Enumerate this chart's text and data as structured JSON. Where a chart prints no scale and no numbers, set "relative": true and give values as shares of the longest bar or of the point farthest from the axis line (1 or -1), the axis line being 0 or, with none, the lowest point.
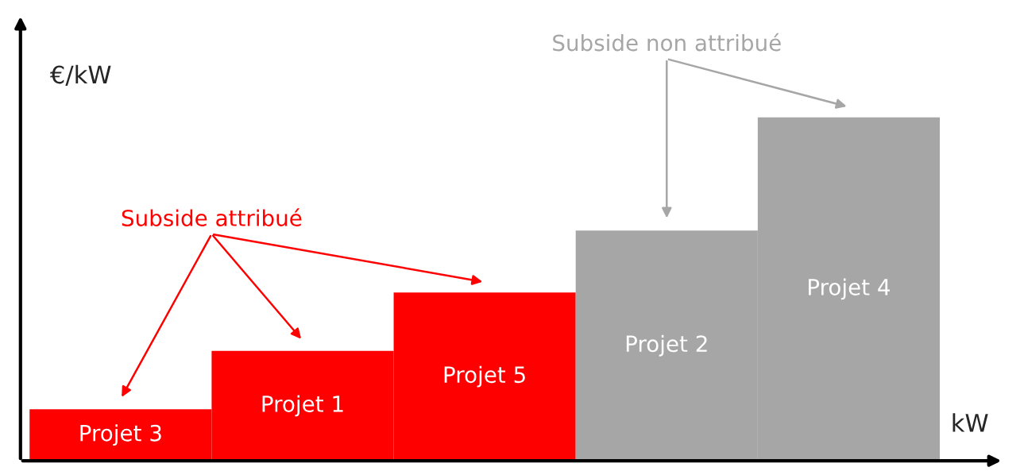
{
  "chart_data": {
    "type": "bar",
    "relative": true,
    "categories": [
      "Projet 3",
      "Projet 1",
      "Projet 5",
      "Projet 2",
      "Projet 4"
    ],
    "values": [
      0.15,
      0.32,
      0.49,
      0.67,
      1
    ],
    "colors": [
      "#ff0000",
      "#ff0000",
      "#ff0000",
      "#a6a6a6",
      "#a6a6a6"
    ],
    "xlabel": "kW",
    "ylabel": "€/kW",
    "annotations": [
      "Subside attribué",
      "Subside non attribué"
    ]
  }
}
